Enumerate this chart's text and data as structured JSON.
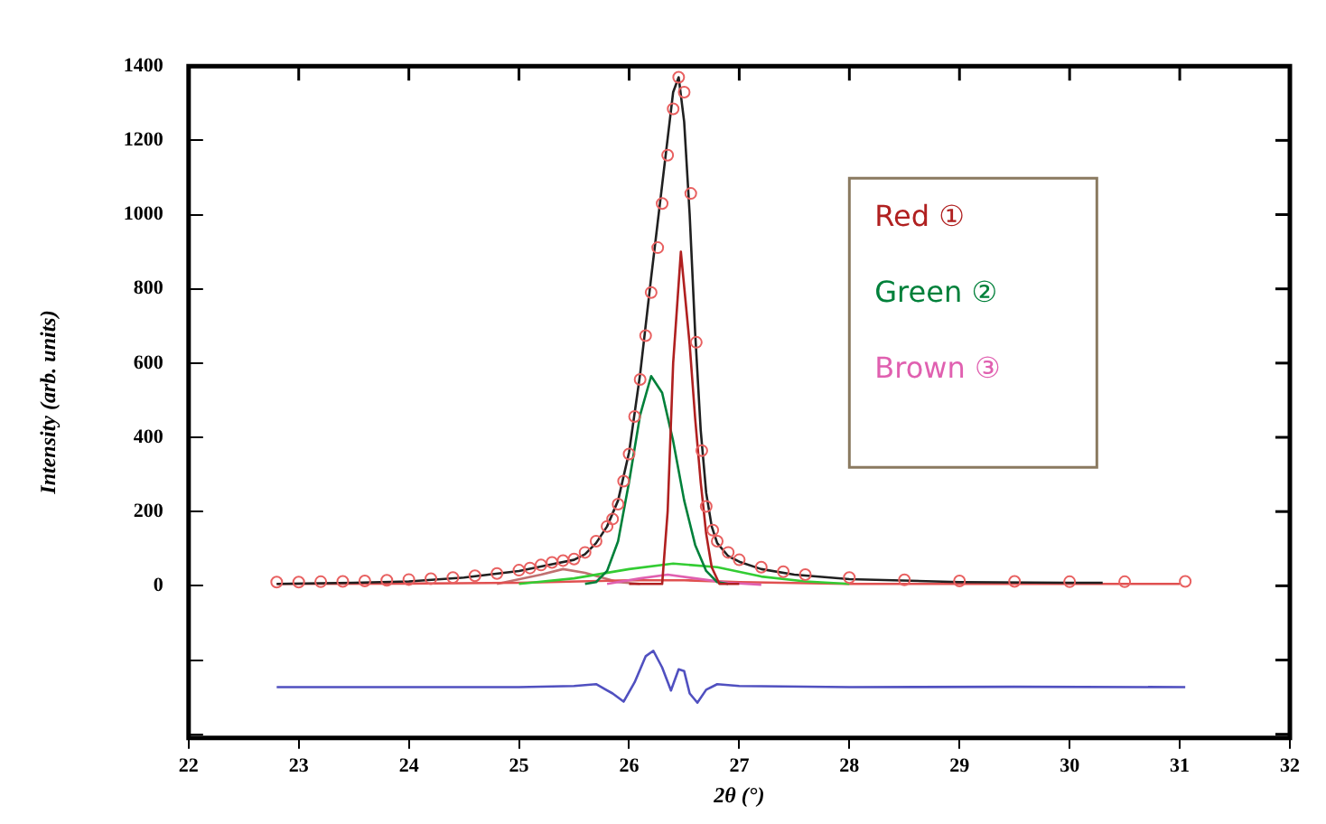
{
  "chart_data": {
    "type": "line",
    "xlabel": "2θ (°)",
    "ylabel": "Intensity (arb. units)",
    "xlim": [
      22,
      32
    ],
    "xticks": [
      22,
      23,
      24,
      25,
      26,
      27,
      28,
      29,
      30,
      31,
      32
    ],
    "ylim": [
      -410,
      1400
    ],
    "yticks": [
      {
        "value": -400,
        "label": null
      },
      {
        "value": -200,
        "label": null
      },
      0,
      200,
      400,
      600,
      800,
      1000,
      1200,
      1400
    ],
    "grid": false,
    "legend": "top right",
    "line_style": "solid",
    "marker": "none",
    "series": [
      {
        "type": "scatter",
        "marker": "circle",
        "color": "#e86060",
        "x": [
          22.8,
          23.0,
          23.2,
          23.4,
          23.6,
          23.8,
          24.0,
          24.2,
          24.4,
          24.6,
          24.8,
          25.0,
          25.1,
          25.2,
          25.3,
          25.4,
          25.5,
          25.6,
          25.7,
          25.8,
          25.85,
          25.9,
          25.95,
          26.0,
          26.05,
          26.1,
          26.15,
          26.2,
          26.26,
          26.3,
          26.35,
          26.4,
          26.45,
          26.5,
          26.56,
          26.61,
          26.66,
          26.7,
          26.76,
          26.8,
          26.9,
          27.0,
          27.2,
          27.4,
          27.6,
          28.0,
          28.5,
          29.0,
          29.5,
          30.0,
          30.5,
          31.05
        ],
        "values": [
          10,
          10,
          11,
          12,
          13,
          15,
          17,
          19,
          22,
          27,
          33,
          42,
          48,
          56,
          63,
          68,
          72,
          90,
          120,
          160,
          180,
          220,
          282,
          355,
          456,
          556,
          674,
          790,
          911,
          1030,
          1160,
          1285,
          1370,
          1330,
          1057,
          656,
          364,
          214,
          150,
          120,
          90,
          70,
          50,
          38,
          30,
          22,
          16,
          13,
          12,
          11,
          11,
          12
        ]
      },
      {
        "color": "#202020",
        "x": [
          22.8,
          23.5,
          24,
          24.5,
          25,
          25.3,
          25.5,
          25.6,
          25.7,
          25.8,
          25.9,
          26.0,
          26.1,
          26.2,
          26.3,
          26.4,
          26.45,
          26.5,
          26.55,
          26.6,
          26.65,
          26.7,
          26.75,
          26.8,
          26.9,
          27,
          27.2,
          27.5,
          28,
          29,
          30,
          30.3
        ],
        "values": [
          5,
          8,
          12,
          22,
          40,
          58,
          70,
          85,
          115,
          160,
          230,
          360,
          570,
          830,
          1080,
          1330,
          1370,
          1250,
          1000,
          680,
          420,
          250,
          160,
          115,
          80,
          65,
          45,
          30,
          18,
          10,
          8,
          8
        ]
      },
      {
        "name": "Red ①",
        "color": "#b02020",
        "x": [
          26.0,
          26.3,
          26.35,
          26.4,
          26.47,
          26.55,
          26.6,
          26.65,
          26.7,
          26.75,
          26.82,
          27.0
        ],
        "values": [
          5,
          5,
          200,
          600,
          900,
          650,
          450,
          280,
          140,
          50,
          5,
          5
        ]
      },
      {
        "name": "Green ②",
        "color": "#00803a",
        "x": [
          25.6,
          25.7,
          25.8,
          25.9,
          26.0,
          26.1,
          26.2,
          26.3,
          26.4,
          26.5,
          26.6,
          26.7,
          26.8,
          26.9
        ],
        "values": [
          5,
          10,
          40,
          120,
          280,
          460,
          565,
          520,
          390,
          230,
          110,
          40,
          10,
          5
        ]
      },
      {
        "name": "Brown ③",
        "color": "#e060b0",
        "x": [
          25.8,
          26.1,
          26.35,
          26.6,
          26.9,
          27.2
        ],
        "values": [
          5,
          20,
          30,
          20,
          8,
          3
        ]
      },
      {
        "color": "#33cc33",
        "x": [
          25.0,
          25.5,
          26.0,
          26.4,
          26.8,
          27.2,
          27.6,
          28.0
        ],
        "values": [
          5,
          20,
          45,
          60,
          50,
          25,
          12,
          5
        ]
      },
      {
        "color": "#e05050",
        "x": [
          22.8,
          24,
          25,
          26,
          26.5,
          27,
          28,
          31
        ],
        "values": [
          5,
          6,
          8,
          15,
          15,
          10,
          5,
          5
        ]
      },
      {
        "color": "#c07070",
        "x": [
          24.8,
          25.2,
          25.4,
          25.6,
          25.9,
          26.1
        ],
        "values": [
          5,
          30,
          45,
          35,
          10,
          5
        ]
      },
      {
        "color": "#5050c0",
        "x": [
          22.8,
          24,
          25,
          25.5,
          25.7,
          25.85,
          25.95,
          26.05,
          26.15,
          26.22,
          26.3,
          26.38,
          26.45,
          26.5,
          26.55,
          26.62,
          26.7,
          26.8,
          27,
          28,
          29.5,
          31.05
        ],
        "values": [
          -273,
          -273,
          -273,
          -270,
          -265,
          -290,
          -312,
          -260,
          -190,
          -175,
          -220,
          -282,
          -225,
          -230,
          -290,
          -315,
          -280,
          -265,
          -270,
          -273,
          -272,
          -273
        ]
      }
    ]
  }
}
